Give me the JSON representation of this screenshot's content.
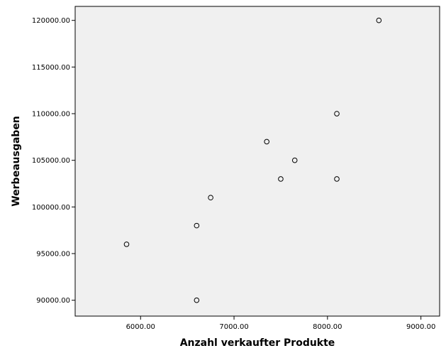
{
  "chart_data": {
    "type": "scatter",
    "title": "",
    "xlabel": "Anzahl verkaufter Produkte",
    "ylabel": "Werbeausgaben",
    "xlim": [
      5300,
      9200
    ],
    "ylim": [
      88300,
      121500
    ],
    "x_ticks": [
      6000,
      7000,
      8000,
      9000
    ],
    "y_ticks": [
      90000,
      95000,
      100000,
      105000,
      110000,
      115000,
      120000
    ],
    "x_tick_labels": [
      "6000.00",
      "7000.00",
      "8000.00",
      "9000.00"
    ],
    "y_tick_labels": [
      "90000.00",
      "95000.00",
      "100000.00",
      "105000.00",
      "110000.00",
      "115000.00",
      "120000.00"
    ],
    "grid": false,
    "plot_background": "#f0f0f0",
    "marker": "hollow-circle",
    "points": [
      {
        "x": 5850,
        "y": 96000
      },
      {
        "x": 6600,
        "y": 90000
      },
      {
        "x": 6600,
        "y": 98000
      },
      {
        "x": 6750,
        "y": 101000
      },
      {
        "x": 7350,
        "y": 107000
      },
      {
        "x": 7500,
        "y": 103000
      },
      {
        "x": 7650,
        "y": 105000
      },
      {
        "x": 8100,
        "y": 110000
      },
      {
        "x": 8100,
        "y": 103000
      },
      {
        "x": 8550,
        "y": 120000
      }
    ]
  }
}
